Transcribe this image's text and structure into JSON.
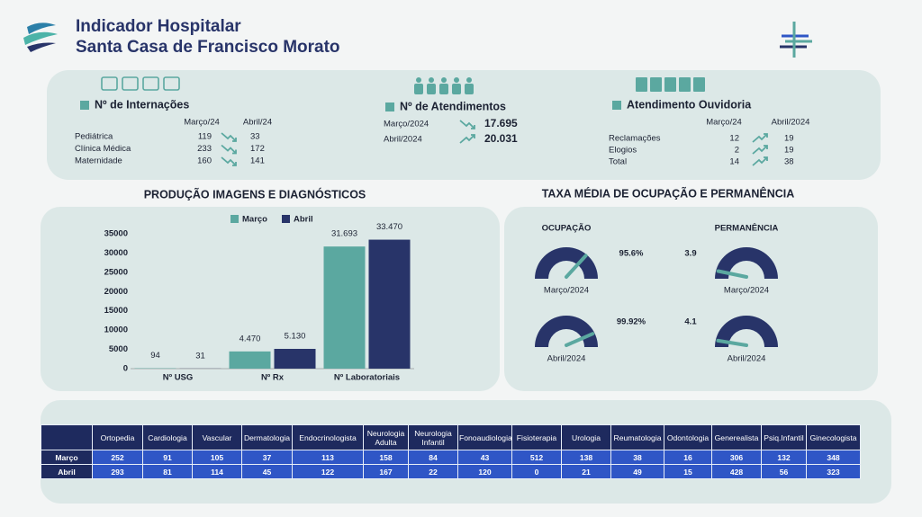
{
  "header": {
    "title": "Indicador Hospitalar",
    "subtitle": "Santa Casa de Francisco Morato"
  },
  "internacoes": {
    "title": "Nº de Internações",
    "columns": [
      "Março/24",
      "Abril/24"
    ],
    "rows": [
      {
        "label": "Pediátrica",
        "values": [
          119,
          33
        ]
      },
      {
        "label": "Clínica Médica",
        "values": [
          233,
          172
        ]
      },
      {
        "label": "Maternidade",
        "values": [
          160,
          141
        ]
      }
    ]
  },
  "atendimentos": {
    "title": "Nº de Atendimentos",
    "rows": [
      {
        "label": "Março/2024",
        "value": "17.695"
      },
      {
        "label": "Abril/2024",
        "value": "20.031"
      }
    ]
  },
  "ouvidoria": {
    "title": "Atendimento Ouvidoria",
    "columns": [
      "Março/24",
      "Abril/2024"
    ],
    "rows": [
      {
        "label": "Reclamações",
        "values": [
          12,
          19
        ]
      },
      {
        "label": "Elogios",
        "values": [
          2,
          19
        ]
      },
      {
        "label": "Total",
        "values": [
          14,
          38
        ]
      }
    ]
  },
  "chart_data": {
    "type": "bar",
    "title": "PRODUÇÃO IMAGENS E DIAGNÓSTICOS",
    "categories": [
      "Nº USG",
      "Nº Rx",
      "Nº Laboratoriais"
    ],
    "series": [
      {
        "name": "Março",
        "color": "#5ba8a0",
        "values": [
          94,
          4470,
          31693
        ],
        "value_labels": [
          "94",
          "4.470",
          "31.693"
        ]
      },
      {
        "name": "Abril",
        "color": "#283469",
        "values": [
          31,
          5130,
          33470
        ],
        "value_labels": [
          "31",
          "5.130",
          "33.470"
        ]
      }
    ],
    "ylim": [
      0,
      35000
    ],
    "yticks": [
      0,
      5000,
      10000,
      15000,
      20000,
      25000,
      30000,
      35000
    ]
  },
  "gauges": {
    "title": "TAXA MÉDIA DE OCUPAÇÃO E PERMANÊNCIA",
    "groups": [
      {
        "title": "OCUPAÇÃO",
        "items": [
          {
            "label": "Março/2024",
            "value": 95.6,
            "value_label": "95.6%",
            "range": [
              0,
              130
            ]
          },
          {
            "label": "Abril/2024",
            "value": 99.92,
            "value_label": "99.92%",
            "range": [
              0,
              115
            ]
          }
        ]
      },
      {
        "title": "PERMANÊNCIA",
        "items": [
          {
            "label": "Março/2024",
            "value": 3.9,
            "range": [
              0,
              60
            ]
          },
          {
            "label": "Abril/2024",
            "value": 4.1,
            "range": [
              0,
              80
            ]
          }
        ]
      }
    ]
  },
  "table": {
    "headers": [
      "Ortopedia",
      "Cardiologia",
      "Vascular",
      "Dermatologia",
      "Endocrinologista",
      "Neurologia Adulta",
      "Neurologia Infantil",
      "Fonoaudiologia",
      "Fisioterapia",
      "Urologia",
      "Reumatologia",
      "Odontologia",
      "Generealista",
      "Psiq.Infantil",
      "Ginecologista"
    ],
    "rows": [
      {
        "label": "Março",
        "values": [
          252,
          91,
          105,
          37,
          113,
          158,
          84,
          43,
          512,
          138,
          38,
          16,
          306,
          132,
          348
        ]
      },
      {
        "label": "Abril",
        "values": [
          293,
          81,
          114,
          45,
          122,
          167,
          22,
          120,
          0,
          21,
          49,
          15,
          428,
          56,
          323
        ]
      }
    ]
  }
}
